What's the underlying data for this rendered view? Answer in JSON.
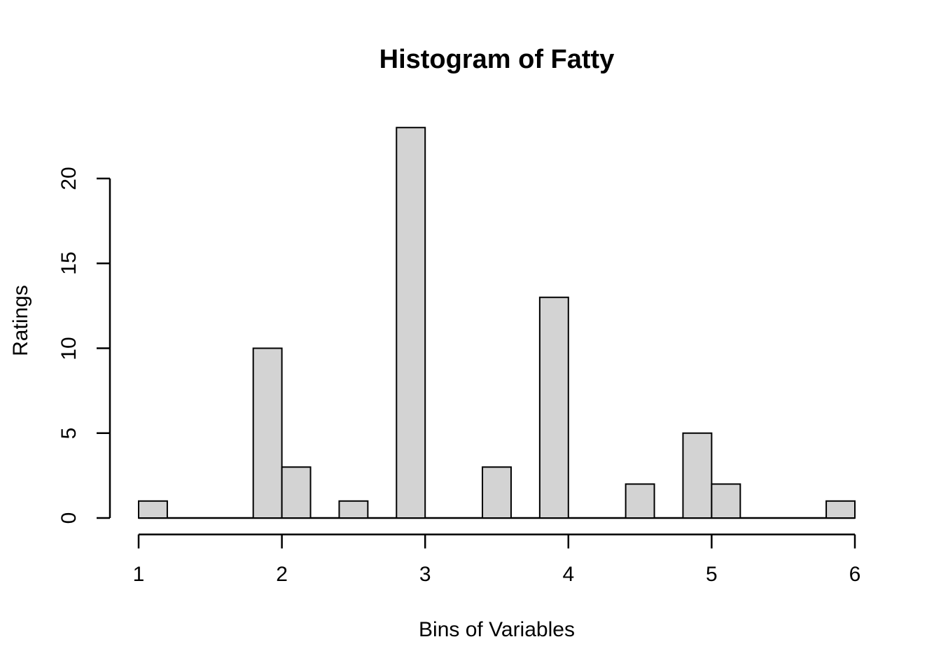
{
  "chart_data": {
    "type": "bar",
    "subtype": "histogram",
    "title": "Histogram of Fatty",
    "xlabel": "Bins of Variables",
    "ylabel": "Ratings",
    "xlim": [
      1,
      6
    ],
    "ylim": [
      0,
      20
    ],
    "x_ticks": [
      "1",
      "2",
      "3",
      "4",
      "5",
      "6"
    ],
    "x_tick_values": [
      1,
      2,
      3,
      4,
      5,
      6
    ],
    "y_ticks": [
      "0",
      "5",
      "10",
      "15",
      "20"
    ],
    "y_tick_values": [
      0,
      5,
      10,
      15,
      20
    ],
    "bin_width": 0.2,
    "bins": [
      {
        "x0": 1.0,
        "x1": 1.2,
        "count": 1
      },
      {
        "x0": 1.8,
        "x1": 2.0,
        "count": 10
      },
      {
        "x0": 2.0,
        "x1": 2.2,
        "count": 3
      },
      {
        "x0": 2.4,
        "x1": 2.6,
        "count": 1
      },
      {
        "x0": 2.8,
        "x1": 3.0,
        "count": 23
      },
      {
        "x0": 3.4,
        "x1": 3.6,
        "count": 3
      },
      {
        "x0": 3.8,
        "x1": 4.0,
        "count": 13
      },
      {
        "x0": 4.4,
        "x1": 4.6,
        "count": 2
      },
      {
        "x0": 4.8,
        "x1": 5.0,
        "count": 5
      },
      {
        "x0": 5.0,
        "x1": 5.2,
        "count": 2
      },
      {
        "x0": 5.8,
        "x1": 6.0,
        "count": 1
      }
    ],
    "grid": false,
    "legend": false,
    "colors": {
      "bar_fill": "#d3d3d3",
      "bar_stroke": "#000000",
      "axis": "#000000",
      "text": "#000000",
      "background": "#ffffff"
    }
  }
}
